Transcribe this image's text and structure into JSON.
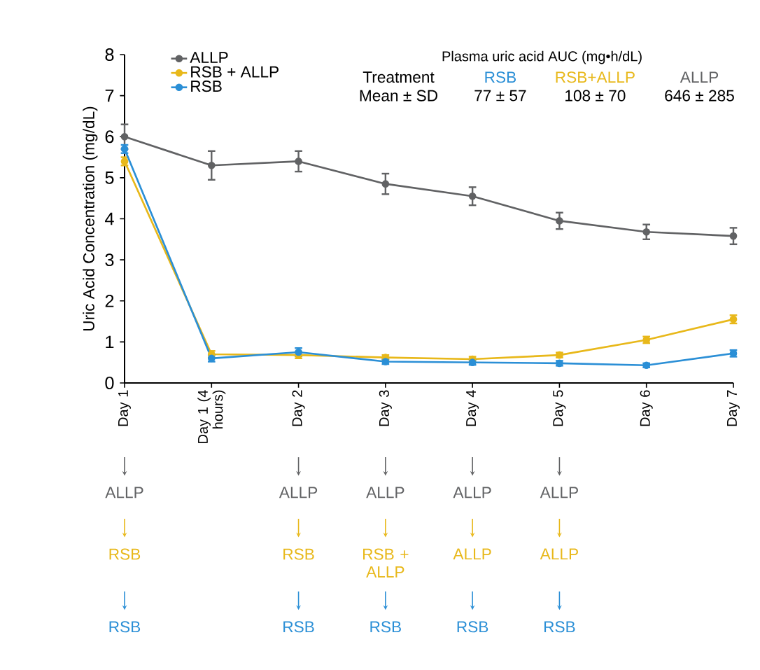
{
  "chart_data": {
    "type": "line",
    "ylabel": "Uric Acid Concentration (mg/dL)",
    "categories": [
      "Day 1",
      "Day 1 (4 hours)",
      "Day 2",
      "Day 3",
      "Day 4",
      "Day 5",
      "Day 6",
      "Day 7"
    ],
    "ylim": [
      0,
      8
    ],
    "yticks": [
      0,
      1,
      2,
      3,
      4,
      5,
      6,
      7,
      8
    ],
    "series": [
      {
        "name": "ALLP",
        "color": "#616264",
        "values": [
          6.0,
          5.3,
          5.4,
          4.85,
          4.55,
          3.95,
          3.68,
          3.58
        ],
        "errors": [
          0.3,
          0.35,
          0.25,
          0.25,
          0.22,
          0.2,
          0.18,
          0.2
        ]
      },
      {
        "name": "RSB + ALLP",
        "color": "#e8b81a",
        "values": [
          5.4,
          0.7,
          0.68,
          0.62,
          0.58,
          0.68,
          1.05,
          1.55
        ],
        "errors": [
          0.1,
          0.08,
          0.08,
          0.06,
          0.06,
          0.06,
          0.08,
          0.1
        ]
      },
      {
        "name": "RSB",
        "color": "#2b8fd6",
        "values": [
          5.7,
          0.6,
          0.75,
          0.52,
          0.5,
          0.48,
          0.43,
          0.72
        ],
        "errors": [
          0.1,
          0.08,
          0.1,
          0.06,
          0.06,
          0.06,
          0.05,
          0.08
        ]
      }
    ],
    "marker": "circle",
    "legend": "top left",
    "grid": false,
    "annotations": [
      "Plasma uric acid AUC (mg•h/dL)",
      "Treatment",
      "RSB",
      "RSB+ALLP",
      "ALLP",
      "Mean ± SD",
      "77 ± 57",
      "108 ± 70",
      "646 ± 285",
      "ALLP",
      "ALLP",
      "ALLP",
      "ALLP",
      "ALLP",
      "RSB",
      "RSB",
      "RSB + ALLP",
      "ALLP",
      "ALLP",
      "RSB",
      "RSB",
      "RSB",
      "RSB",
      "RSB"
    ]
  }
}
